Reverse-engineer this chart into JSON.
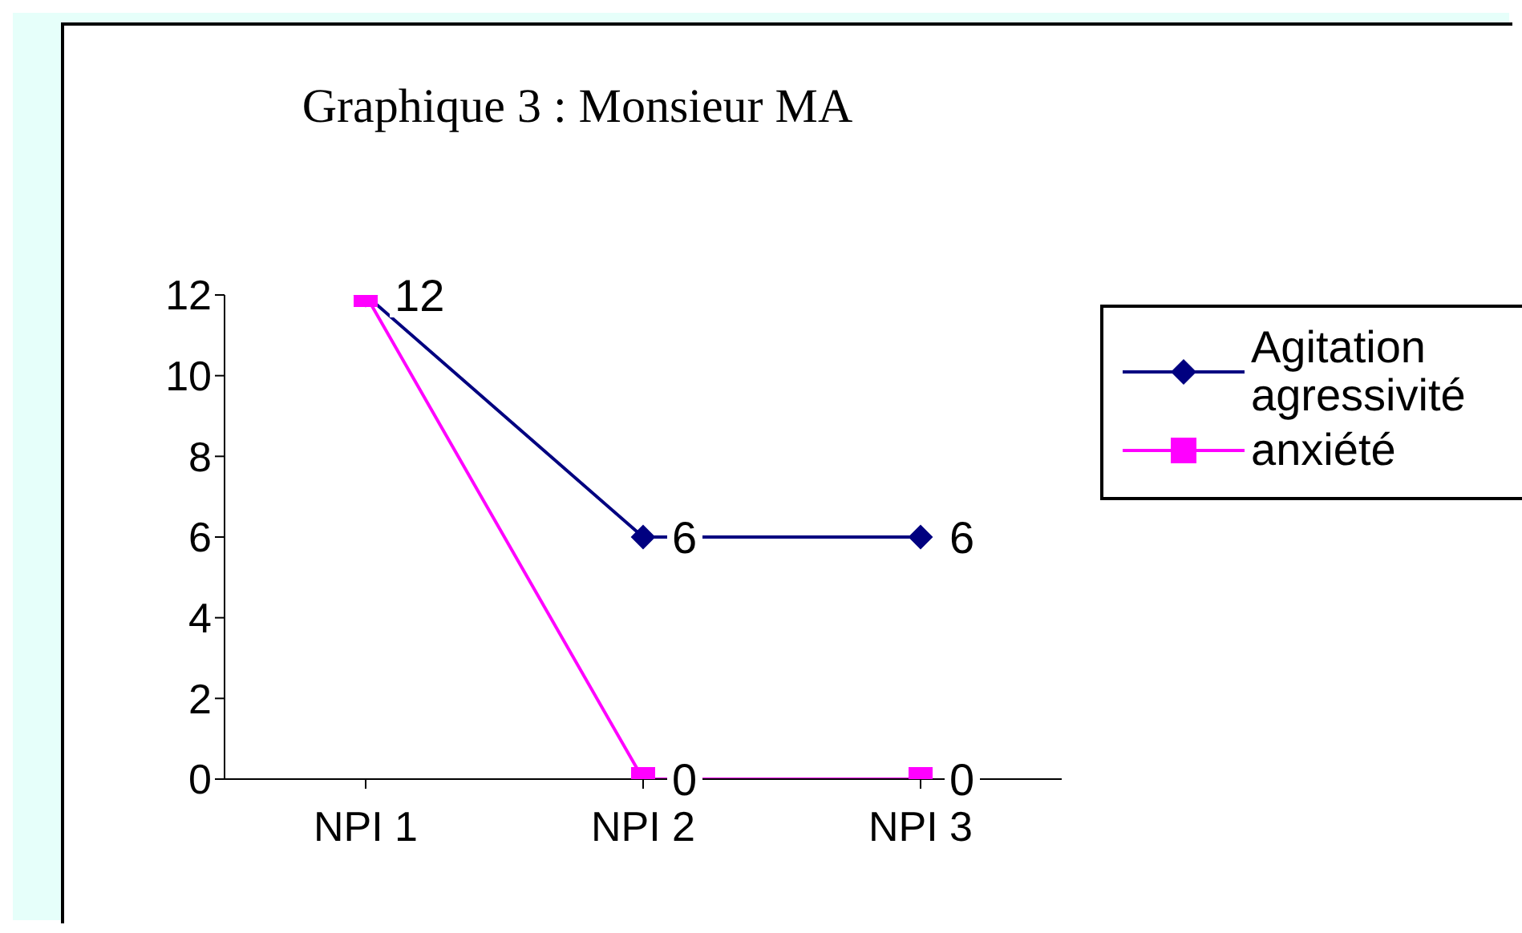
{
  "chart_data": {
    "type": "line",
    "title": "Graphique 3 : Monsieur MA",
    "categories": [
      "NPI 1",
      "NPI 2",
      "NPI 3"
    ],
    "series": [
      {
        "name": "Agitation agressivité",
        "color": "#000080",
        "marker": "diamond",
        "values": [
          12,
          6,
          6
        ],
        "value_labels": [
          "12",
          "6",
          "6"
        ]
      },
      {
        "name": "anxiété",
        "color": "#ff00ff",
        "marker": "square",
        "values": [
          12,
          0,
          0
        ],
        "value_labels": [
          null,
          "0",
          "0"
        ]
      }
    ],
    "ylim": [
      0,
      12
    ],
    "yticks": [
      0,
      2,
      4,
      6,
      8,
      10,
      12
    ],
    "grid": false,
    "legend": "right"
  }
}
